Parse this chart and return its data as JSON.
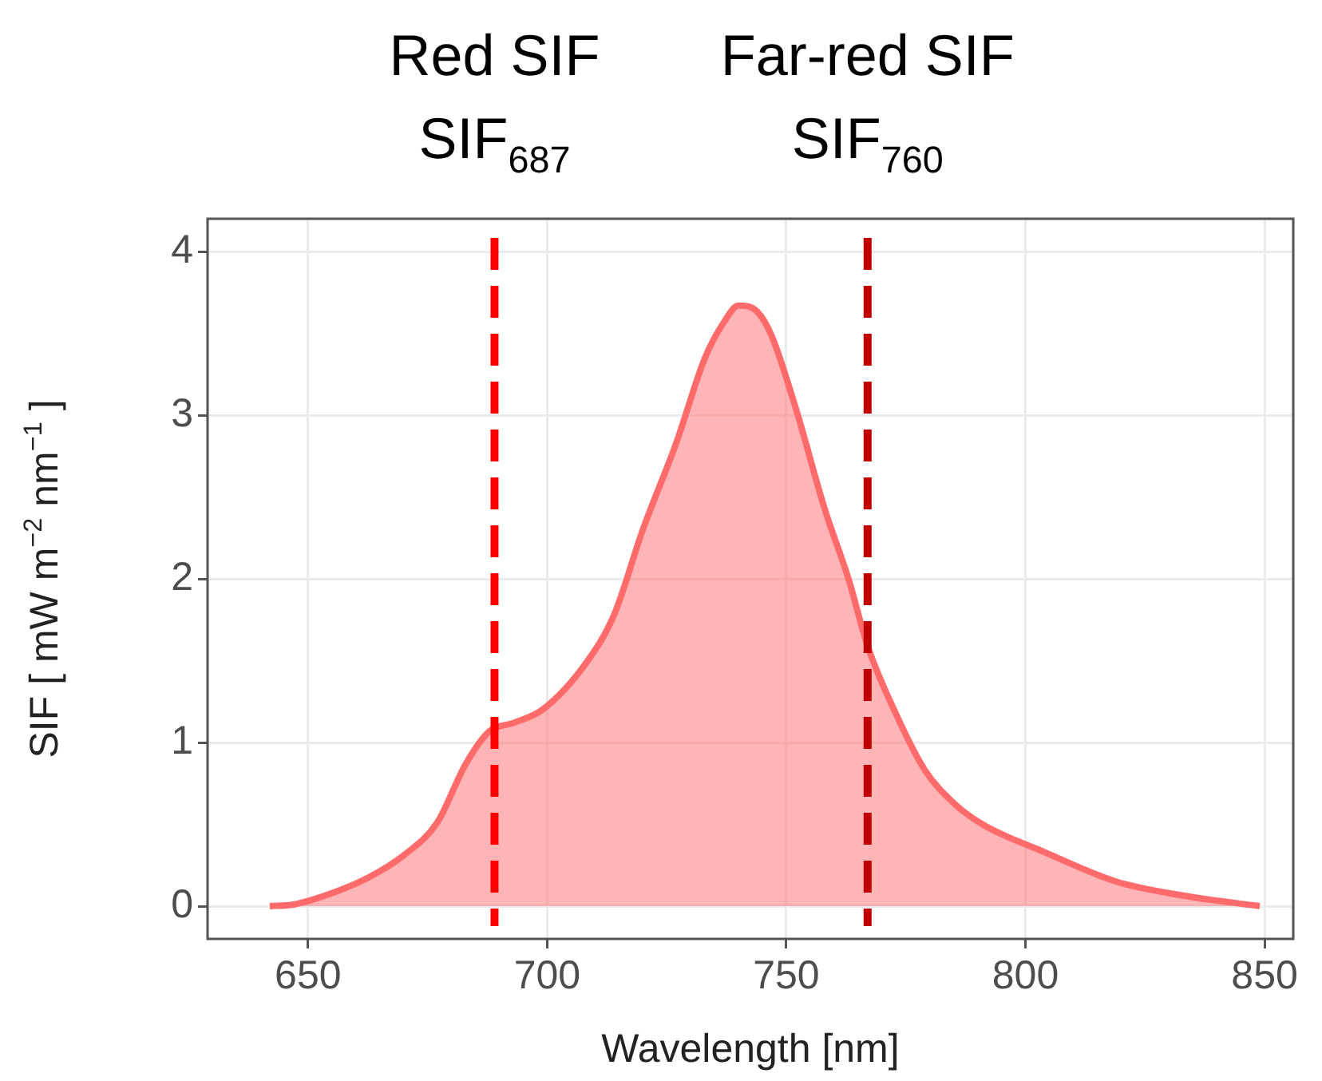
{
  "chart_data": {
    "type": "area",
    "xlabel": "Wavelength [nm]",
    "ylabel": "SIF [ mW m$^{−2}$ nm$^{−1}$ ]",
    "x": [
      642,
      647,
      656,
      663,
      670,
      677,
      683,
      688,
      693,
      699,
      708,
      714,
      720,
      727,
      733,
      737,
      740,
      744,
      747,
      752,
      758,
      763,
      767,
      773,
      779,
      785,
      791,
      804,
      819,
      834,
      849
    ],
    "series": [
      {
        "color": "#ff6b6b",
        "values": [
          0,
          0.01,
          0.09,
          0.18,
          0.31,
          0.51,
          0.87,
          1.07,
          1.12,
          1.2,
          1.48,
          1.78,
          2.3,
          2.83,
          3.35,
          3.57,
          3.67,
          3.63,
          3.48,
          3.04,
          2.43,
          2.0,
          1.59,
          1.17,
          0.83,
          0.63,
          0.5,
          0.33,
          0.15,
          0.06,
          0
        ]
      }
    ],
    "xlim": [
      629,
      856
    ],
    "xticks": [
      650,
      700,
      750,
      800,
      850
    ],
    "ylim": [
      -0.2,
      4.2
    ],
    "yticks": [
      0,
      1,
      2,
      3,
      4
    ],
    "grid": true,
    "legend": false,
    "ref_lines": [
      {
        "axis": "x",
        "value": 689,
        "label": "Red SIF\nSIF$_{687}$",
        "color": "#ff0000",
        "line_style": "dashed"
      },
      {
        "axis": "x",
        "value": 767,
        "label": "Far-red SIF\nSIF$_{760}$",
        "color": "#c00000",
        "line_style": "dashed"
      }
    ]
  }
}
